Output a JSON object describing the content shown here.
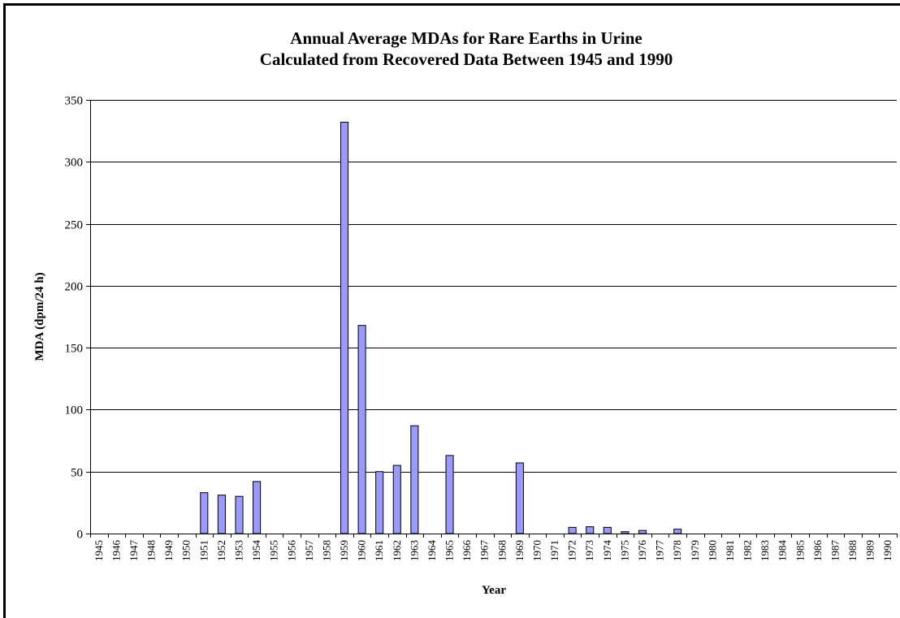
{
  "chart_data": {
    "type": "bar",
    "title": "Annual Average MDAs for Rare Earths in Urine",
    "subtitle": "Calculated from Recovered Data Between 1945 and 1990",
    "xlabel": "Year",
    "ylabel": "MDA (dpm/24 h)",
    "ylim": [
      0,
      350
    ],
    "yticks": [
      0,
      50,
      100,
      150,
      200,
      250,
      300,
      350
    ],
    "grid": true,
    "legend": "none",
    "bar_color": "#9999ff",
    "categories": [
      "1945",
      "1946",
      "1947",
      "1948",
      "1949",
      "1950",
      "1951",
      "1952",
      "1953",
      "1954",
      "1955",
      "1956",
      "1957",
      "1958",
      "1959",
      "1960",
      "1961",
      "1962",
      "1963",
      "1964",
      "1965",
      "1966",
      "1967",
      "1968",
      "1969",
      "1970",
      "1971",
      "1972",
      "1973",
      "1974",
      "1975",
      "1976",
      "1977",
      "1978",
      "1979",
      "1980",
      "1981",
      "1982",
      "1983",
      "1984",
      "1985",
      "1986",
      "1987",
      "1988",
      "1989",
      "1990"
    ],
    "values": [
      0,
      0,
      0,
      0,
      0,
      0,
      33,
      31,
      30,
      42,
      0,
      0,
      0,
      0,
      332,
      168,
      50,
      55,
      87,
      0,
      63,
      0,
      0,
      0,
      57,
      0,
      0,
      5,
      5.5,
      5,
      1.5,
      2.5,
      0,
      3.5,
      0,
      0,
      0,
      0,
      0,
      0,
      0,
      0,
      0,
      0,
      0,
      0
    ]
  }
}
